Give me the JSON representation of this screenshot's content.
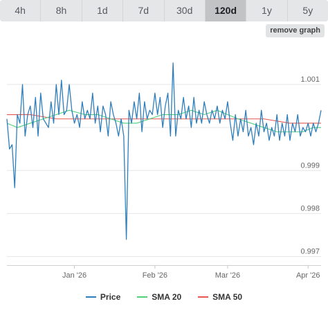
{
  "tabs": [
    {
      "label": "4h",
      "active": false
    },
    {
      "label": "8h",
      "active": false
    },
    {
      "label": "1d",
      "active": false
    },
    {
      "label": "7d",
      "active": false
    },
    {
      "label": "30d",
      "active": false
    },
    {
      "label": "120d",
      "active": true
    },
    {
      "label": "1y",
      "active": false
    },
    {
      "label": "5y",
      "active": false
    }
  ],
  "remove_graph_label": "remove graph",
  "legend": [
    {
      "name": "Price",
      "color": "#2f7ebc"
    },
    {
      "name": "SMA 20",
      "color": "#4fd17a"
    },
    {
      "name": "SMA 50",
      "color": "#e8574f"
    }
  ],
  "chart_data": {
    "type": "line",
    "title": "",
    "xlabel": "",
    "ylabel": "",
    "ylim": [
      0.9968,
      1.00195
    ],
    "y_ticks": [
      0.997,
      0.998,
      0.999,
      1.0,
      1.001
    ],
    "y_tick_labels": [
      "0.997",
      "0.998",
      "0.999",
      "",
      "1.001"
    ],
    "x_range": [
      "2025-12-06",
      "2026-04-06"
    ],
    "x_ticks": [
      {
        "date": "2026-01-01",
        "label": "Jan '26"
      },
      {
        "date": "2026-02-01",
        "label": "Feb '26"
      },
      {
        "date": "2026-03-01",
        "label": "Mar '26"
      },
      {
        "date": "2026-04-01",
        "label": "Apr '26"
      }
    ],
    "grid": true,
    "legend_position": "bottom",
    "series": [
      {
        "name": "Price",
        "color": "#2f7ebc",
        "points": [
          [
            "2025-12-06",
            1.0002
          ],
          [
            "2025-12-07",
            0.9995
          ],
          [
            "2025-12-08",
            0.9996
          ],
          [
            "2025-12-09",
            0.9986
          ],
          [
            "2025-12-10",
            1.0003
          ],
          [
            "2025-12-11",
            1.0001
          ],
          [
            "2025-12-12",
            1.001
          ],
          [
            "2025-12-13",
            0.9998
          ],
          [
            "2025-12-14",
            1.0003
          ],
          [
            "2025-12-15",
            1.0005
          ],
          [
            "2025-12-16",
            1.0
          ],
          [
            "2025-12-17",
            1.0007
          ],
          [
            "2025-12-18",
            0.9998
          ],
          [
            "2025-12-19",
            1.0008
          ],
          [
            "2025-12-20",
            1.0002
          ],
          [
            "2025-12-21",
            1.0001
          ],
          [
            "2025-12-22",
            1.0
          ],
          [
            "2025-12-23",
            1.0006
          ],
          [
            "2025-12-24",
            1.0001
          ],
          [
            "2025-12-25",
            1.001
          ],
          [
            "2025-12-26",
            1.0003
          ],
          [
            "2025-12-27",
            1.0011
          ],
          [
            "2025-12-28",
            1.0003
          ],
          [
            "2025-12-29",
            1.0004
          ],
          [
            "2025-12-30",
            1.001
          ],
          [
            "2025-12-31",
            1.0004
          ],
          [
            "2026-01-01",
            1.0001
          ],
          [
            "2026-01-02",
            1.0003
          ],
          [
            "2026-01-03",
            1.0
          ],
          [
            "2026-01-04",
            1.0006
          ],
          [
            "2026-01-05",
            1.0002
          ],
          [
            "2026-01-06",
            1.0004
          ],
          [
            "2026-01-07",
            1.0002
          ],
          [
            "2026-01-08",
            1.0008
          ],
          [
            "2026-01-09",
            1.0001
          ],
          [
            "2026-01-10",
            1.0005
          ],
          [
            "2026-01-11",
            0.9999
          ],
          [
            "2026-01-12",
            1.0005
          ],
          [
            "2026-01-13",
            1.0003
          ],
          [
            "2026-01-14",
            0.9998
          ],
          [
            "2026-01-15",
            1.0006
          ],
          [
            "2026-01-16",
            1.0003
          ],
          [
            "2026-01-17",
            1.0001
          ],
          [
            "2026-01-18",
            0.9998
          ],
          [
            "2026-01-19",
            1.0002
          ],
          [
            "2026-01-20",
            0.9998
          ],
          [
            "2026-01-21",
            0.9974
          ],
          [
            "2026-01-22",
            1.0004
          ],
          [
            "2026-01-23",
            1.0001
          ],
          [
            "2026-01-24",
            1.0006
          ],
          [
            "2026-01-25",
            1.0002
          ],
          [
            "2026-01-26",
            1.0008
          ],
          [
            "2026-01-27",
            0.9999
          ],
          [
            "2026-01-28",
            1.0006
          ],
          [
            "2026-01-29",
            1.0002
          ],
          [
            "2026-01-30",
            1.0004
          ],
          [
            "2026-01-31",
            1.0003
          ],
          [
            "2026-02-01",
            1.0008
          ],
          [
            "2026-02-02",
            1.0003
          ],
          [
            "2026-02-03",
            1.0007
          ],
          [
            "2026-02-04",
            1.0
          ],
          [
            "2026-02-05",
            1.0005
          ],
          [
            "2026-02-06",
            1.0008
          ],
          [
            "2026-02-07",
            0.9998
          ],
          [
            "2026-02-08",
            1.0015
          ],
          [
            "2026-02-09",
            0.9998
          ],
          [
            "2026-02-10",
            1.0004
          ],
          [
            "2026-02-11",
            1.0002
          ],
          [
            "2026-02-12",
            1.0007
          ],
          [
            "2026-02-13",
            1.0002
          ],
          [
            "2026-02-14",
            1.0005
          ],
          [
            "2026-02-15",
            1.0
          ],
          [
            "2026-02-16",
            1.0007
          ],
          [
            "2026-02-17",
            1.0001
          ],
          [
            "2026-02-18",
            1.0004
          ],
          [
            "2026-02-19",
            1.0001
          ],
          [
            "2026-02-20",
            1.0006
          ],
          [
            "2026-02-21",
            1.0003
          ],
          [
            "2026-02-22",
            1.0001
          ],
          [
            "2026-02-23",
            1.0004
          ],
          [
            "2026-02-24",
            1.0002
          ],
          [
            "2026-02-25",
            1.0005
          ],
          [
            "2026-02-26",
            1.0001
          ],
          [
            "2026-02-27",
            1.0004
          ],
          [
            "2026-02-28",
            1.0002
          ],
          [
            "2026-03-01",
            1.0006
          ],
          [
            "2026-03-02",
            1.0001
          ],
          [
            "2026-03-03",
            0.9997
          ],
          [
            "2026-03-04",
            1.0003
          ],
          [
            "2026-03-05",
            0.9998
          ],
          [
            "2026-03-06",
            1.0002
          ],
          [
            "2026-03-07",
            0.9999
          ],
          [
            "2026-03-08",
            1.0004
          ],
          [
            "2026-03-09",
            0.9998
          ],
          [
            "2026-03-10",
            1.0
          ],
          [
            "2026-03-11",
            0.9996
          ],
          [
            "2026-03-12",
            1.0001
          ],
          [
            "2026-03-13",
            0.9998
          ],
          [
            "2026-03-14",
            1.0004
          ],
          [
            "2026-03-15",
            0.9999
          ],
          [
            "2026-03-16",
            1.0001
          ],
          [
            "2026-03-17",
            0.9997
          ],
          [
            "2026-03-18",
            1.0
          ],
          [
            "2026-03-19",
            0.9998
          ],
          [
            "2026-03-20",
            1.0003
          ],
          [
            "2026-03-21",
            0.9997
          ],
          [
            "2026-03-22",
            1.0001
          ],
          [
            "2026-03-23",
            0.9998
          ],
          [
            "2026-03-24",
            1.0003
          ],
          [
            "2026-03-25",
            0.9997
          ],
          [
            "2026-03-26",
            1.0001
          ],
          [
            "2026-03-27",
            0.9999
          ],
          [
            "2026-03-28",
            1.0003
          ],
          [
            "2026-03-29",
            0.9998
          ],
          [
            "2026-03-30",
            1.0
          ],
          [
            "2026-03-31",
            0.9999
          ],
          [
            "2026-04-01",
            1.0001
          ],
          [
            "2026-04-02",
            0.9998
          ],
          [
            "2026-04-03",
            1.0001
          ],
          [
            "2026-04-04",
            0.9999
          ],
          [
            "2026-04-05",
            1.0001
          ],
          [
            "2026-04-06",
            1.0004
          ]
        ]
      },
      {
        "name": "SMA 20",
        "color": "#4fd17a",
        "points": [
          [
            "2025-12-06",
            1.0001
          ],
          [
            "2025-12-10",
            1.0
          ],
          [
            "2025-12-15",
            1.0001
          ],
          [
            "2025-12-20",
            1.0002
          ],
          [
            "2025-12-25",
            1.0003
          ],
          [
            "2025-12-30",
            1.0004
          ],
          [
            "2026-01-05",
            1.0003
          ],
          [
            "2026-01-10",
            1.0003
          ],
          [
            "2026-01-15",
            1.0002
          ],
          [
            "2026-01-20",
            1.0001
          ],
          [
            "2026-01-25",
            1.0001
          ],
          [
            "2026-01-30",
            1.0002
          ],
          [
            "2026-02-04",
            1.0003
          ],
          [
            "2026-02-10",
            1.0003
          ],
          [
            "2026-02-15",
            1.0004
          ],
          [
            "2026-02-20",
            1.0003
          ],
          [
            "2026-02-25",
            1.0004
          ],
          [
            "2026-03-01",
            1.0003
          ],
          [
            "2026-03-05",
            1.0002
          ],
          [
            "2026-03-10",
            1.0001
          ],
          [
            "2026-03-15",
            1.0
          ],
          [
            "2026-03-20",
            0.9999
          ],
          [
            "2026-03-25",
            0.9999
          ],
          [
            "2026-03-30",
            0.9999
          ],
          [
            "2026-04-03",
            1.0
          ],
          [
            "2026-04-06",
            1.0
          ]
        ]
      },
      {
        "name": "SMA 50",
        "color": "#e8574f",
        "points": [
          [
            "2025-12-06",
            1.0003
          ],
          [
            "2025-12-15",
            1.0003
          ],
          [
            "2025-12-25",
            1.0002
          ],
          [
            "2026-01-05",
            1.0002
          ],
          [
            "2026-01-15",
            1.0002
          ],
          [
            "2026-01-25",
            1.0002
          ],
          [
            "2026-02-05",
            1.0002
          ],
          [
            "2026-02-15",
            1.0002
          ],
          [
            "2026-02-25",
            1.0002
          ],
          [
            "2026-03-05",
            1.0002
          ],
          [
            "2026-03-15",
            1.0002
          ],
          [
            "2026-03-25",
            1.0001
          ],
          [
            "2026-04-06",
            1.0001
          ]
        ]
      }
    ]
  }
}
